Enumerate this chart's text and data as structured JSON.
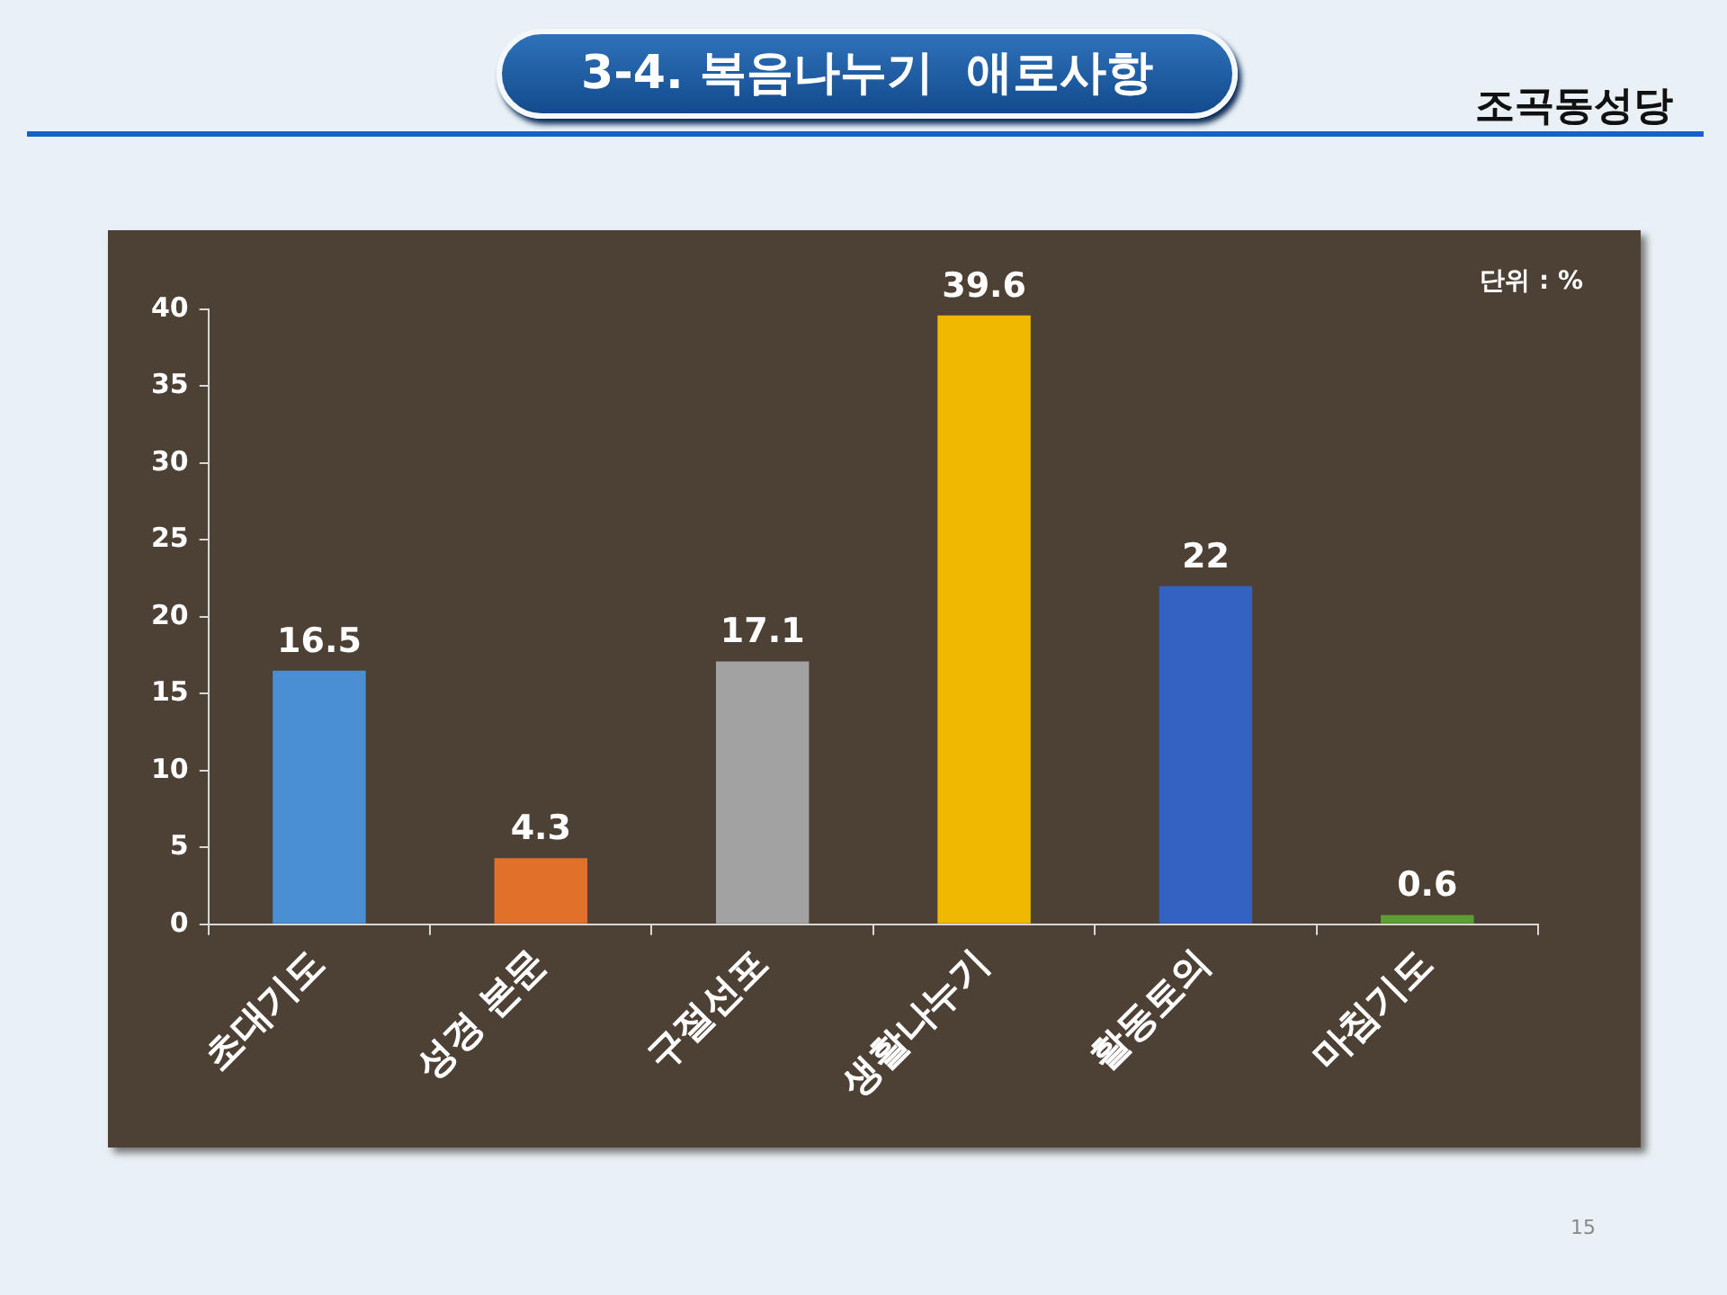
{
  "chart_data": {
    "type": "bar",
    "title": "3-4. 복음나누기  애로사항",
    "subtitle": "조곡동성당",
    "categories": [
      "초대기도",
      "성경 본문",
      "구절선포",
      "생활나누기",
      "활동토의",
      "마침기도"
    ],
    "values": [
      16.5,
      4.3,
      17.1,
      39.6,
      22,
      0.6
    ],
    "colors": [
      "#4a8fd4",
      "#e0702a",
      "#a2a2a2",
      "#f0b800",
      "#3462c2",
      "#5c9e34"
    ],
    "ylim": [
      0,
      40
    ],
    "yticks": [
      0,
      5,
      10,
      15,
      20,
      25,
      30,
      35,
      40
    ],
    "data_labels": true,
    "annotations": [
      "단위 : %",
      "15"
    ]
  }
}
